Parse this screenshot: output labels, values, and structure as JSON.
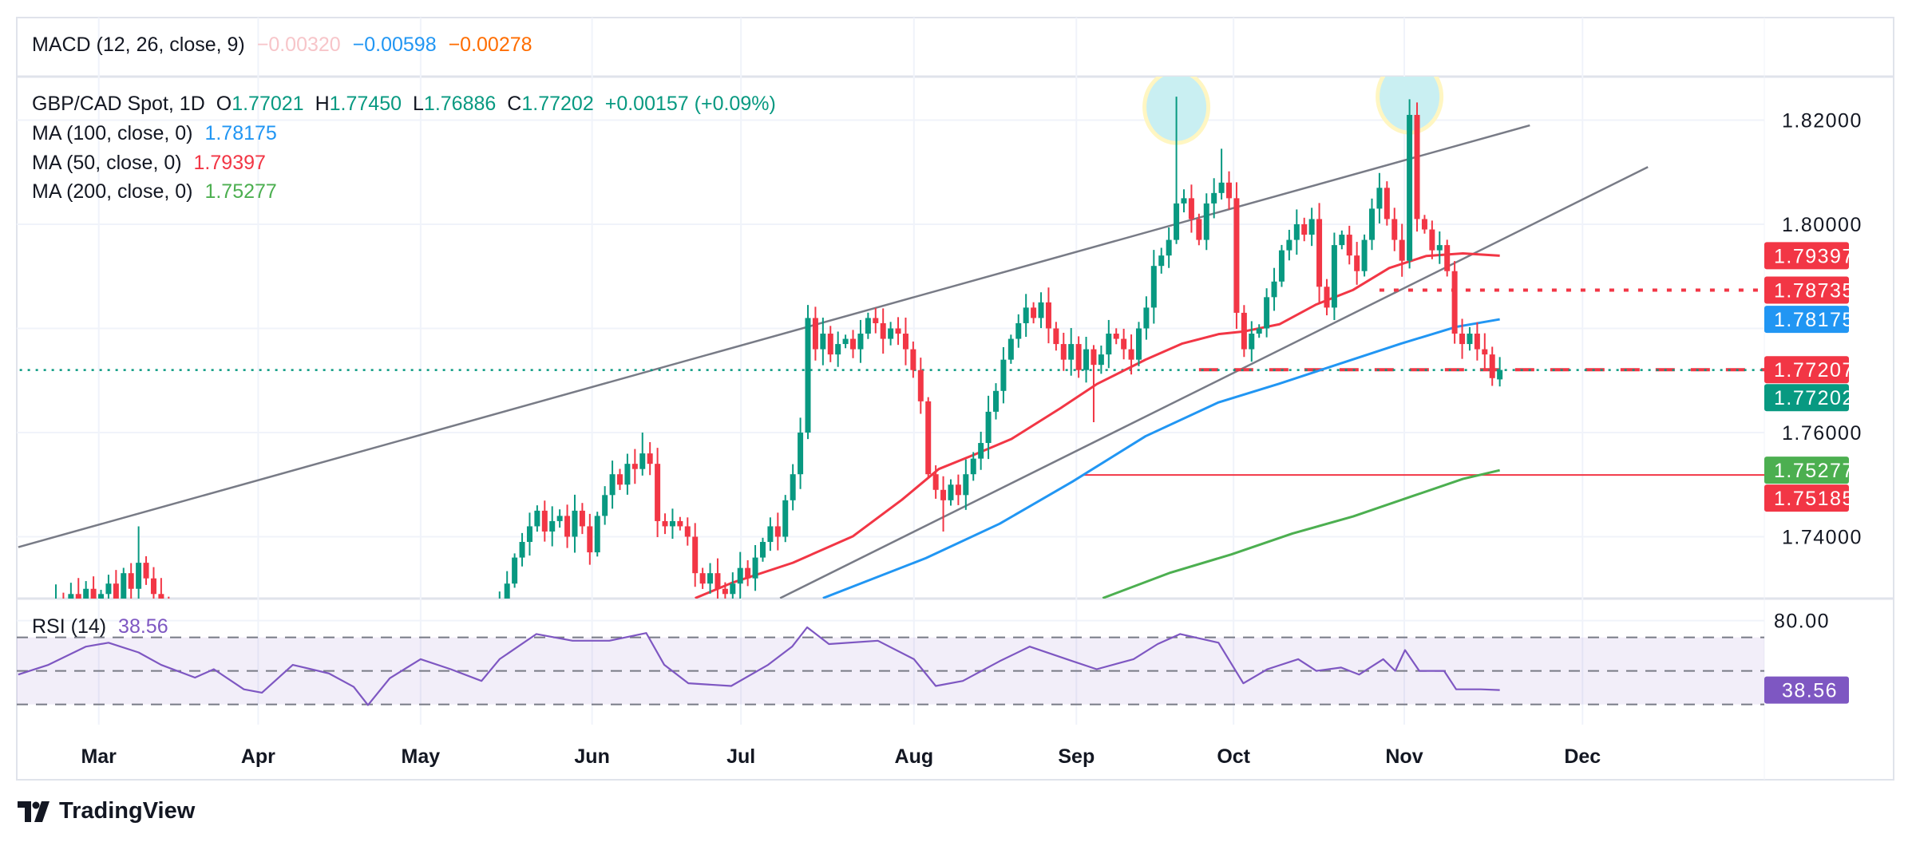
{
  "macd": {
    "label": "MACD (12, 26, close, 9)",
    "hist": "−0.00320",
    "macd": "−0.00598",
    "signal": "−0.00278",
    "colors": {
      "hist": "#f7c5c9",
      "macd": "#2196f3",
      "signal": "#ff6d00"
    }
  },
  "header": {
    "symbol": "GBP/CAD Spot, 1D",
    "o_label": "O",
    "o": "1.77021",
    "h_label": "H",
    "h": "1.77450",
    "l_label": "L",
    "l": "1.76886",
    "c_label": "C",
    "c": "1.77202",
    "change": "+0.00157 (+0.09%)"
  },
  "indicators": [
    {
      "label": "MA (100, close, 0)",
      "value": "1.78175",
      "color": "#2196f3"
    },
    {
      "label": "MA (50, close, 0)",
      "value": "1.79397",
      "color": "#f23645"
    },
    {
      "label": "MA (200, close, 0)",
      "value": "1.75277",
      "color": "#4caf50"
    }
  ],
  "rsi": {
    "label": "RSI (14)",
    "value": "38.56",
    "color": "#7e57c2",
    "axis_label": "80.00",
    "bands": [
      70,
      50,
      30
    ]
  },
  "branding": {
    "name": "TradingView"
  },
  "chart_data": {
    "type": "candlestick",
    "title": "GBP/CAD Spot, 1D",
    "ylim": [
      1.728,
      1.828
    ],
    "y_ticks": [
      "1.82000",
      "1.80000",
      "1.76000",
      "1.74000"
    ],
    "y_grid": [
      1.82,
      1.8,
      1.78,
      1.76,
      1.74
    ],
    "x_ticks": [
      {
        "label": "Mar",
        "index": 10.7
      },
      {
        "label": "Apr",
        "index": 31.9
      },
      {
        "label": "May",
        "index": 53.5
      },
      {
        "label": "Jun",
        "index": 76.3
      },
      {
        "label": "Jul",
        "index": 96.1
      },
      {
        "label": "Aug",
        "index": 119.1
      },
      {
        "label": "Sep",
        "index": 140.7
      },
      {
        "label": "Oct",
        "index": 161.6
      },
      {
        "label": "Nov",
        "index": 184.3
      },
      {
        "label": "Dec",
        "index": 208
      }
    ],
    "colors": {
      "up": "#089981",
      "down": "#f23645"
    },
    "first_open": 1.72,
    "close": [
      1.722,
      1.724,
      1.72,
      1.726,
      1.723,
      1.728,
      1.725,
      1.729,
      1.727,
      1.73,
      1.726,
      1.729,
      1.731,
      1.728,
      1.733,
      1.73,
      1.735,
      1.732,
      1.729,
      1.727,
      1.725,
      1.722,
      1.724,
      1.72,
      1.718,
      1.721,
      1.717,
      1.719,
      1.716,
      1.718,
      1.715,
      1.717,
      1.719,
      1.716,
      1.72,
      1.722,
      1.719,
      1.721,
      1.718,
      1.716,
      1.718,
      1.715,
      1.717,
      1.713,
      1.716,
      1.712,
      1.714,
      1.711,
      1.713,
      1.71,
      1.712,
      1.714,
      1.713,
      1.716,
      1.718,
      1.717,
      1.72,
      1.719,
      1.722,
      1.721,
      1.72,
      1.723,
      1.725,
      1.724,
      1.728,
      1.731,
      1.736,
      1.739,
      1.742,
      1.745,
      1.741,
      1.743,
      1.744,
      1.74,
      1.745,
      1.742,
      1.737,
      1.744,
      1.748,
      1.752,
      1.75,
      1.754,
      1.753,
      1.756,
      1.754,
      1.743,
      1.742,
      1.743,
      1.742,
      1.74,
      1.733,
      1.731,
      1.733,
      1.73,
      1.729,
      1.731,
      1.734,
      1.732,
      1.736,
      1.739,
      1.742,
      1.74,
      1.747,
      1.752,
      1.76,
      1.782,
      1.776,
      1.779,
      1.775,
      1.777,
      1.778,
      1.776,
      1.779,
      1.782,
      1.781,
      1.778,
      1.78,
      1.779,
      1.776,
      1.772,
      1.766,
      1.752,
      1.749,
      1.747,
      1.75,
      1.748,
      1.752,
      1.755,
      1.758,
      1.764,
      1.768,
      1.774,
      1.778,
      1.781,
      1.784,
      1.782,
      1.785,
      1.78,
      1.777,
      1.774,
      1.777,
      1.772,
      1.776,
      1.773,
      1.775,
      1.779,
      1.778,
      1.776,
      1.774,
      1.78,
      1.784,
      1.792,
      1.794,
      1.797,
      1.804,
      1.805,
      1.801,
      1.797,
      1.804,
      1.806,
      1.808,
      1.805,
      1.783,
      1.776,
      1.779,
      1.78,
      1.786,
      1.789,
      1.795,
      1.797,
      1.8,
      1.798,
      1.801,
      1.788,
      1.784,
      1.796,
      1.798,
      1.794,
      1.791,
      1.797,
      1.803,
      1.807,
      1.801,
      1.797,
      1.793,
      1.821,
      1.801,
      1.799,
      1.795,
      1.796,
      1.791,
      1.779,
      1.777,
      1.779,
      1.776,
      1.775,
      1.77045,
      1.77202
    ],
    "last_candle": {
      "open": 1.77021,
      "high": 1.7745,
      "low": 1.76886,
      "close": 1.77202
    },
    "high_overrides": {
      "16": 1.742,
      "83": 1.76,
      "105": 1.7845,
      "154": 1.8245,
      "160": 1.8145,
      "185": 1.824
    },
    "low_overrides": {
      "123": 1.741,
      "143": 1.762
    },
    "moving_averages": [
      {
        "name": "MA 50",
        "color": "#f23645",
        "points": [
          [
            90,
            1.7282
          ],
          [
            95,
            1.7312
          ],
          [
            103,
            1.735
          ],
          [
            111,
            1.7401
          ],
          [
            117.5,
            1.7471
          ],
          [
            122.4,
            1.753
          ],
          [
            127.2,
            1.7558
          ],
          [
            132.1,
            1.7588
          ],
          [
            138.6,
            1.7647
          ],
          [
            143.4,
            1.7693
          ],
          [
            149.9,
            1.774
          ],
          [
            154.8,
            1.7771
          ],
          [
            159.6,
            1.7789
          ],
          [
            162.9,
            1.7794
          ],
          [
            167.7,
            1.7808
          ],
          [
            172.6,
            1.7846
          ],
          [
            177.5,
            1.7874
          ],
          [
            182.3,
            1.7916
          ],
          [
            187.2,
            1.7939
          ],
          [
            192.1,
            1.7944
          ],
          [
            197,
            1.79397
          ]
        ]
      },
      {
        "name": "MA 100",
        "color": "#2196f3",
        "points": [
          [
            107,
            1.7282
          ],
          [
            120.7,
            1.7359
          ],
          [
            130.5,
            1.7425
          ],
          [
            140.2,
            1.7506
          ],
          [
            149.9,
            1.7593
          ],
          [
            159.6,
            1.7658
          ],
          [
            167.7,
            1.7694
          ],
          [
            175.9,
            1.7733
          ],
          [
            183.9,
            1.7771
          ],
          [
            191.2,
            1.7803
          ],
          [
            197,
            1.78175
          ]
        ]
      },
      {
        "name": "MA 200",
        "color": "#4caf50",
        "points": [
          [
            144.2,
            1.7282
          ],
          [
            153.2,
            1.7331
          ],
          [
            161.3,
            1.7366
          ],
          [
            169.4,
            1.7406
          ],
          [
            177.5,
            1.7439
          ],
          [
            185.6,
            1.7479
          ],
          [
            192.1,
            1.7511
          ],
          [
            197,
            1.75277
          ]
        ]
      }
    ],
    "trend_lines": [
      {
        "name": "channel-upper",
        "from": [
          0,
          1.738
        ],
        "to": [
          201,
          1.819
        ]
      },
      {
        "name": "channel-lower",
        "from": [
          101.3,
          1.7282
        ],
        "to": [
          216.7,
          1.811
        ]
      }
    ],
    "horizontal_lines": [
      {
        "name": "resistance-dotted",
        "value": 1.78735,
        "from_index": 181,
        "style": "dotted",
        "color": "#f23645"
      },
      {
        "name": "neckline-dashed",
        "value": 1.77207,
        "from_index": 157,
        "style": "dashed",
        "color": "#f23645"
      },
      {
        "name": "target-line",
        "value": 1.75185,
        "from_index": 141.5,
        "style": "solid",
        "color": "#f23645"
      },
      {
        "name": "last-price-line",
        "value": 1.77202,
        "from_index": -3,
        "style": "dotted",
        "color": "#089981"
      }
    ],
    "highlights": [
      {
        "name": "peak-1",
        "index": 154,
        "value": 1.8225
      },
      {
        "name": "peak-2",
        "index": 185,
        "value": 1.8245
      }
    ],
    "price_tags": [
      {
        "value": "1.79397",
        "color": "#f23645"
      },
      {
        "value": "1.78735",
        "color": "#f23645"
      },
      {
        "value": "1.78175",
        "color": "#2196f3"
      },
      {
        "value": "1.77207",
        "color": "#f23645"
      },
      {
        "value": "1.77202",
        "color": "#089981"
      },
      {
        "value": "1.75277",
        "color": "#4caf50"
      },
      {
        "value": "1.75185",
        "color": "#f23645"
      }
    ],
    "rsi_points": [
      [
        0,
        47.8
      ],
      [
        4,
        53.6
      ],
      [
        9,
        64.5
      ],
      [
        12,
        66.8
      ],
      [
        16,
        61
      ],
      [
        19,
        53.6
      ],
      [
        23.5,
        46
      ],
      [
        26,
        51
      ],
      [
        30,
        39
      ],
      [
        32.4,
        37
      ],
      [
        36.5,
        53.6
      ],
      [
        41.3,
        48.5
      ],
      [
        44.6,
        40.5
      ],
      [
        46.5,
        29.6
      ],
      [
        49.4,
        45.6
      ],
      [
        53.5,
        57
      ],
      [
        57.5,
        51
      ],
      [
        61.6,
        44
      ],
      [
        64,
        57
      ],
      [
        68.9,
        72
      ],
      [
        73.7,
        68
      ],
      [
        78.6,
        68
      ],
      [
        83.5,
        72.6
      ],
      [
        85.9,
        53.6
      ],
      [
        89.1,
        42.6
      ],
      [
        94.8,
        41
      ],
      [
        99.7,
        53.6
      ],
      [
        102.9,
        64.5
      ],
      [
        104.9,
        76
      ],
      [
        107.8,
        66
      ],
      [
        114.3,
        68
      ],
      [
        119.1,
        57
      ],
      [
        122,
        41
      ],
      [
        125.6,
        44
      ],
      [
        130.5,
        55.8
      ],
      [
        134.5,
        64.5
      ],
      [
        140.2,
        55.8
      ],
      [
        143.4,
        51
      ],
      [
        148.3,
        57
      ],
      [
        151.5,
        66
      ],
      [
        154.5,
        72
      ],
      [
        159.6,
        66.8
      ],
      [
        162.9,
        42.6
      ],
      [
        166.1,
        51
      ],
      [
        170.2,
        57
      ],
      [
        172.6,
        50
      ],
      [
        175.9,
        52
      ],
      [
        178.3,
        47.8
      ],
      [
        181.5,
        57
      ],
      [
        183.1,
        50
      ],
      [
        184.4,
        62.4
      ],
      [
        186.3,
        50
      ],
      [
        189.6,
        50
      ],
      [
        191.2,
        39
      ],
      [
        194.5,
        39
      ],
      [
        197,
        38.56
      ]
    ]
  }
}
